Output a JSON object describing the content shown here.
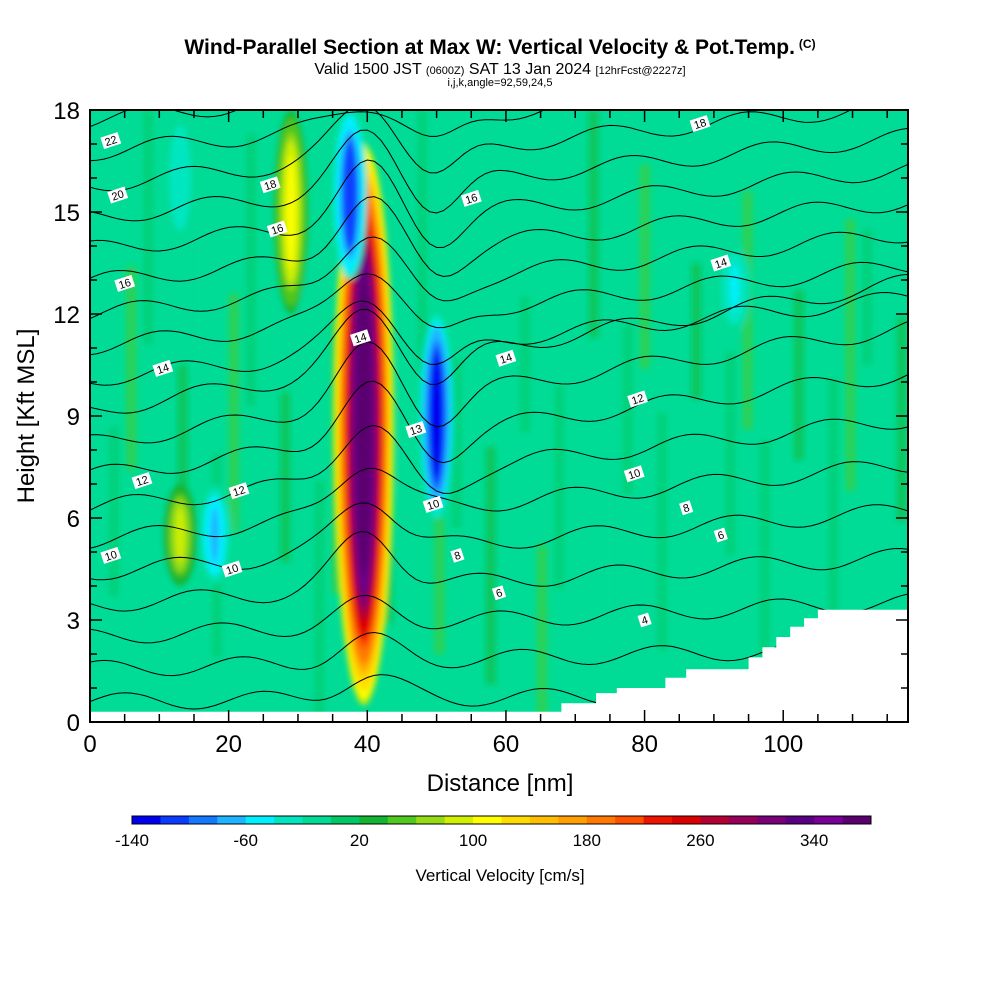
{
  "title": "Wind-Parallel Section at Max W: Vertical Velocity & Pot.Temp.",
  "copyright": "(C)",
  "subtitle": {
    "valid": "Valid 1500 JST",
    "utc": "(0600Z)",
    "date": "SAT 13 Jan 2024",
    "fcst": "[12hrFcst@2227z]"
  },
  "info": "i,j,k,angle=92,59,24,5",
  "chart_data": {
    "type": "heatmap",
    "title": "Wind-Parallel Section at Max W: Vertical Velocity & Pot.Temp.",
    "xlabel": "Distance [nm]",
    "ylabel": "Height [Kft MSL]",
    "xlim": [
      0,
      118
    ],
    "ylim": [
      0,
      18
    ],
    "x_ticks": [
      0,
      20,
      40,
      60,
      80,
      100
    ],
    "y_ticks": [
      0,
      3,
      6,
      9,
      12,
      15,
      18
    ],
    "colorbar": {
      "label": "Vertical Velocity [cm/s]",
      "min": -140,
      "max": 380,
      "step": 20,
      "tick_labels": [
        -140,
        -60,
        20,
        100,
        180,
        260,
        340
      ],
      "colors": [
        "#0000f0",
        "#0a3cff",
        "#1478ff",
        "#1eb4ff",
        "#00f0ff",
        "#00e6c0",
        "#00dc96",
        "#00c864",
        "#14b432",
        "#50c81e",
        "#96dc14",
        "#d2f000",
        "#ffff00",
        "#ffdc00",
        "#ffbe00",
        "#ffa000",
        "#ff7800",
        "#ff5000",
        "#f01400",
        "#dc0000",
        "#b40032",
        "#96005a",
        "#780078",
        "#5a0082",
        "#780096",
        "#5a006e"
      ]
    },
    "w_features": [
      {
        "kind": "updraft",
        "x": 39.5,
        "y_range": [
          0.5,
          17
        ],
        "w": 360
      },
      {
        "kind": "downdraft",
        "x": 37.5,
        "y_range": [
          13,
          18
        ],
        "w": -120
      },
      {
        "kind": "downdraft",
        "x": 50,
        "y_range": [
          6,
          12
        ],
        "w": -140
      },
      {
        "kind": "updraft",
        "x": 29,
        "y_range": [
          12,
          18
        ],
        "w": 110
      },
      {
        "kind": "updraft",
        "x": 13,
        "y_range": [
          4,
          7
        ],
        "w": 90
      },
      {
        "kind": "downdraft",
        "x": 18,
        "y_range": [
          4,
          7
        ],
        "w": -70
      },
      {
        "kind": "downdraft",
        "x": 13,
        "y_range": [
          14,
          18
        ],
        "w": -40
      },
      {
        "kind": "downdraft",
        "x": 93,
        "y_range": [
          11.5,
          14
        ],
        "w": -50
      }
    ],
    "theta_contours": {
      "quantity": "Pot.Temp.",
      "labels": [
        {
          "text": "22",
          "x": 3,
          "y": 17.1
        },
        {
          "text": "20",
          "x": 4,
          "y": 15.5
        },
        {
          "text": "18",
          "x": 26,
          "y": 15.8
        },
        {
          "text": "16",
          "x": 27,
          "y": 14.5
        },
        {
          "text": "16",
          "x": 55,
          "y": 15.4
        },
        {
          "text": "18",
          "x": 88,
          "y": 17.6
        },
        {
          "text": "16",
          "x": 5,
          "y": 12.9
        },
        {
          "text": "14",
          "x": 10.5,
          "y": 10.4
        },
        {
          "text": "14",
          "x": 39,
          "y": 11.3
        },
        {
          "text": "14",
          "x": 60,
          "y": 10.7
        },
        {
          "text": "14",
          "x": 91,
          "y": 13.5
        },
        {
          "text": "13",
          "x": 47,
          "y": 8.6
        },
        {
          "text": "12",
          "x": 7.5,
          "y": 7.1
        },
        {
          "text": "12",
          "x": 21.5,
          "y": 6.8
        },
        {
          "text": "12",
          "x": 79,
          "y": 9.5
        },
        {
          "text": "10",
          "x": 49.5,
          "y": 6.4
        },
        {
          "text": "10",
          "x": 3,
          "y": 4.9
        },
        {
          "text": "10",
          "x": 20.5,
          "y": 4.5
        },
        {
          "text": "10",
          "x": 78.5,
          "y": 7.3
        },
        {
          "text": "8",
          "x": 53,
          "y": 4.9
        },
        {
          "text": "8",
          "x": 86,
          "y": 6.3
        },
        {
          "text": "6",
          "x": 59,
          "y": 3.8
        },
        {
          "text": "6",
          "x": 91,
          "y": 5.5
        },
        {
          "text": "4",
          "x": 80,
          "y": 3.0
        }
      ]
    },
    "terrain": [
      [
        0,
        0.3
      ],
      [
        68,
        0.3
      ],
      [
        68,
        0.55
      ],
      [
        73,
        0.55
      ],
      [
        73,
        0.85
      ],
      [
        76,
        0.85
      ],
      [
        76,
        1.0
      ],
      [
        83,
        1.0
      ],
      [
        83,
        1.3
      ],
      [
        86,
        1.3
      ],
      [
        86,
        1.55
      ],
      [
        95,
        1.55
      ],
      [
        95,
        1.9
      ],
      [
        97,
        1.9
      ],
      [
        97,
        2.2
      ],
      [
        99,
        2.2
      ],
      [
        99,
        2.5
      ],
      [
        101,
        2.5
      ],
      [
        101,
        2.8
      ],
      [
        103,
        2.8
      ],
      [
        103,
        3.05
      ],
      [
        105,
        3.05
      ],
      [
        105,
        3.3
      ],
      [
        118,
        3.3
      ]
    ]
  }
}
